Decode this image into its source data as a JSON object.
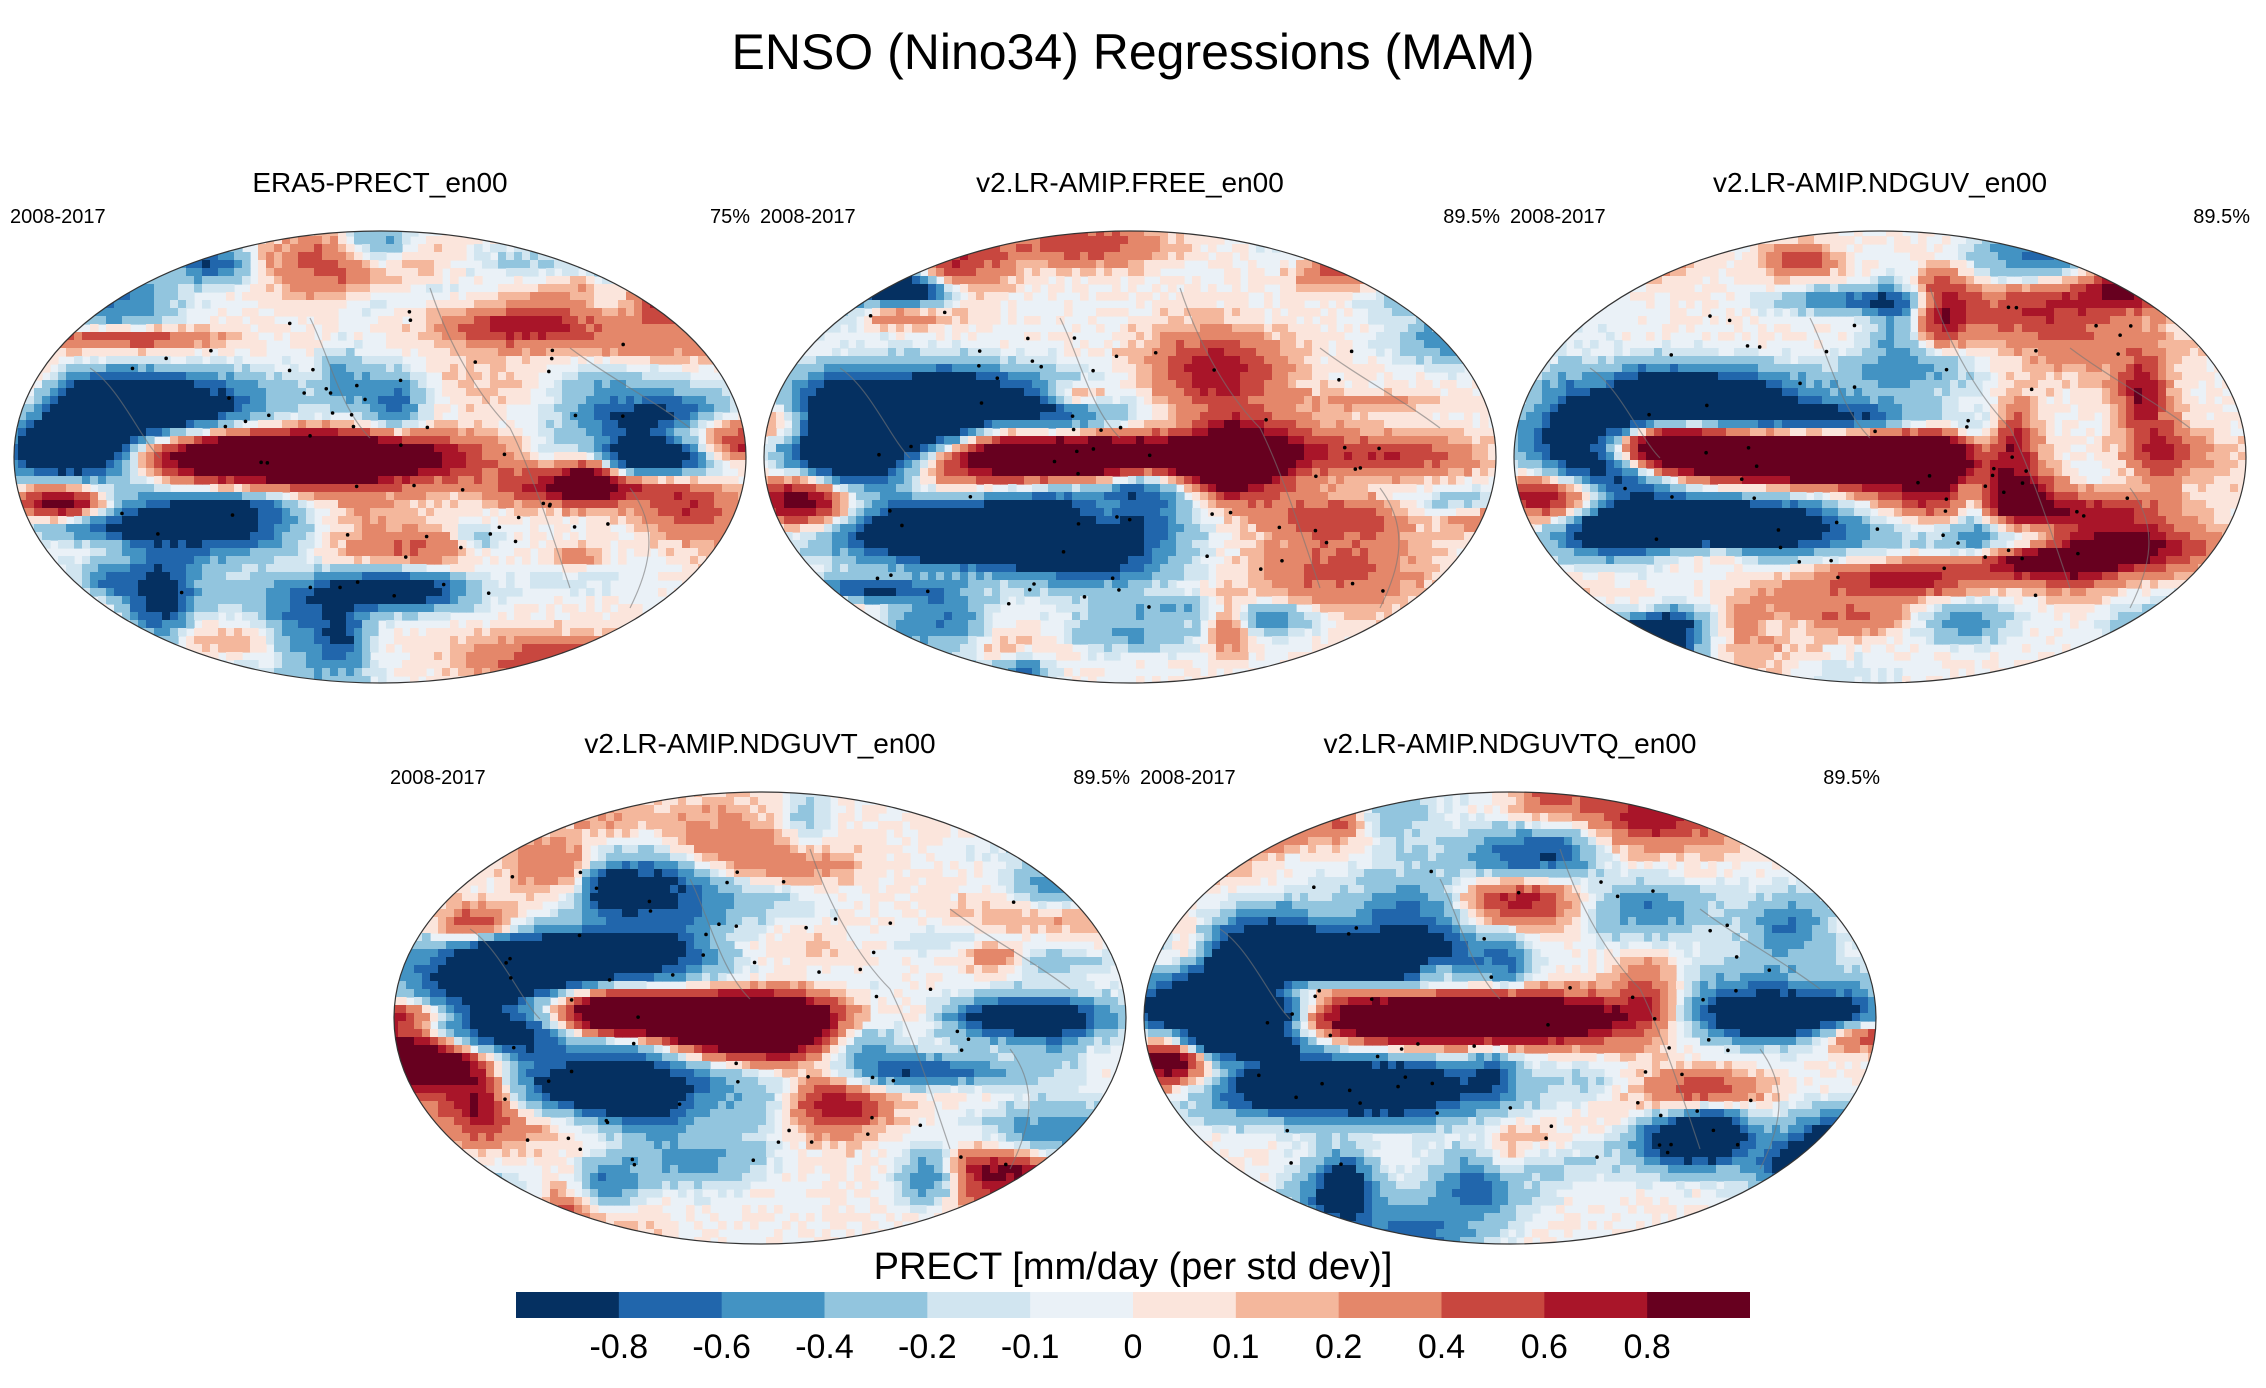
{
  "figure": {
    "title": "ENSO (Nino34) Regressions (MAM)"
  },
  "panels": [
    {
      "title": "ERA5-PRECT_en00",
      "period": "2008-2017",
      "percent": "75%"
    },
    {
      "title": "v2.LR-AMIP.FREE_en00",
      "period": "2008-2017",
      "percent": "89.5%"
    },
    {
      "title": "v2.LR-AMIP.NDGUV_en00",
      "period": "2008-2017",
      "percent": "89.5%"
    },
    {
      "title": "v2.LR-AMIP.NDGUVT_en00",
      "period": "2008-2017",
      "percent": "89.5%"
    },
    {
      "title": "v2.LR-AMIP.NDGUVTQ_en00",
      "period": "2008-2017",
      "percent": "89.5%"
    }
  ],
  "colorbar": {
    "label": "PRECT [mm/day (per std dev)]",
    "tick_labels": [
      "-0.8",
      "-0.6",
      "-0.4",
      "-0.2",
      "-0.1",
      "0",
      "0.1",
      "0.2",
      "0.4",
      "0.6",
      "0.8"
    ],
    "colors": [
      "#053061",
      "#2166ac",
      "#4393c3",
      "#92c5de",
      "#d1e5f0",
      "#eaf1f7",
      "#fbe5dc",
      "#f4b79c",
      "#e4876a",
      "#c8473f",
      "#a91529",
      "#67001f"
    ]
  },
  "chart_data": {
    "type": "heatmap",
    "title": "ENSO (Nino34) Regressions (MAM)",
    "projection": "global map",
    "variable": "PRECT",
    "units": "mm/day (per std dev)",
    "season": "MAM",
    "levels": [
      -0.8,
      -0.6,
      -0.4,
      -0.2,
      -0.1,
      0,
      0.1,
      0.2,
      0.4,
      0.6,
      0.8
    ],
    "colors": [
      "#053061",
      "#2166ac",
      "#4393c3",
      "#92c5de",
      "#d1e5f0",
      "#eaf1f7",
      "#fbe5dc",
      "#f4b79c",
      "#e4876a",
      "#c8473f",
      "#a91529",
      "#67001f"
    ],
    "panels": [
      {
        "name": "ERA5-PRECT_en00",
        "period": "2008-2017",
        "percent": "75%"
      },
      {
        "name": "v2.LR-AMIP.FREE_en00",
        "period": "2008-2017",
        "percent": "89.5%"
      },
      {
        "name": "v2.LR-AMIP.NDGUV_en00",
        "period": "2008-2017",
        "percent": "89.5%"
      },
      {
        "name": "v2.LR-AMIP.NDGUVT_en00",
        "period": "2008-2017",
        "percent": "89.5%"
      },
      {
        "name": "v2.LR-AMIP.NDGUVTQ_en00",
        "period": "2008-2017",
        "percent": "89.5%"
      }
    ]
  }
}
